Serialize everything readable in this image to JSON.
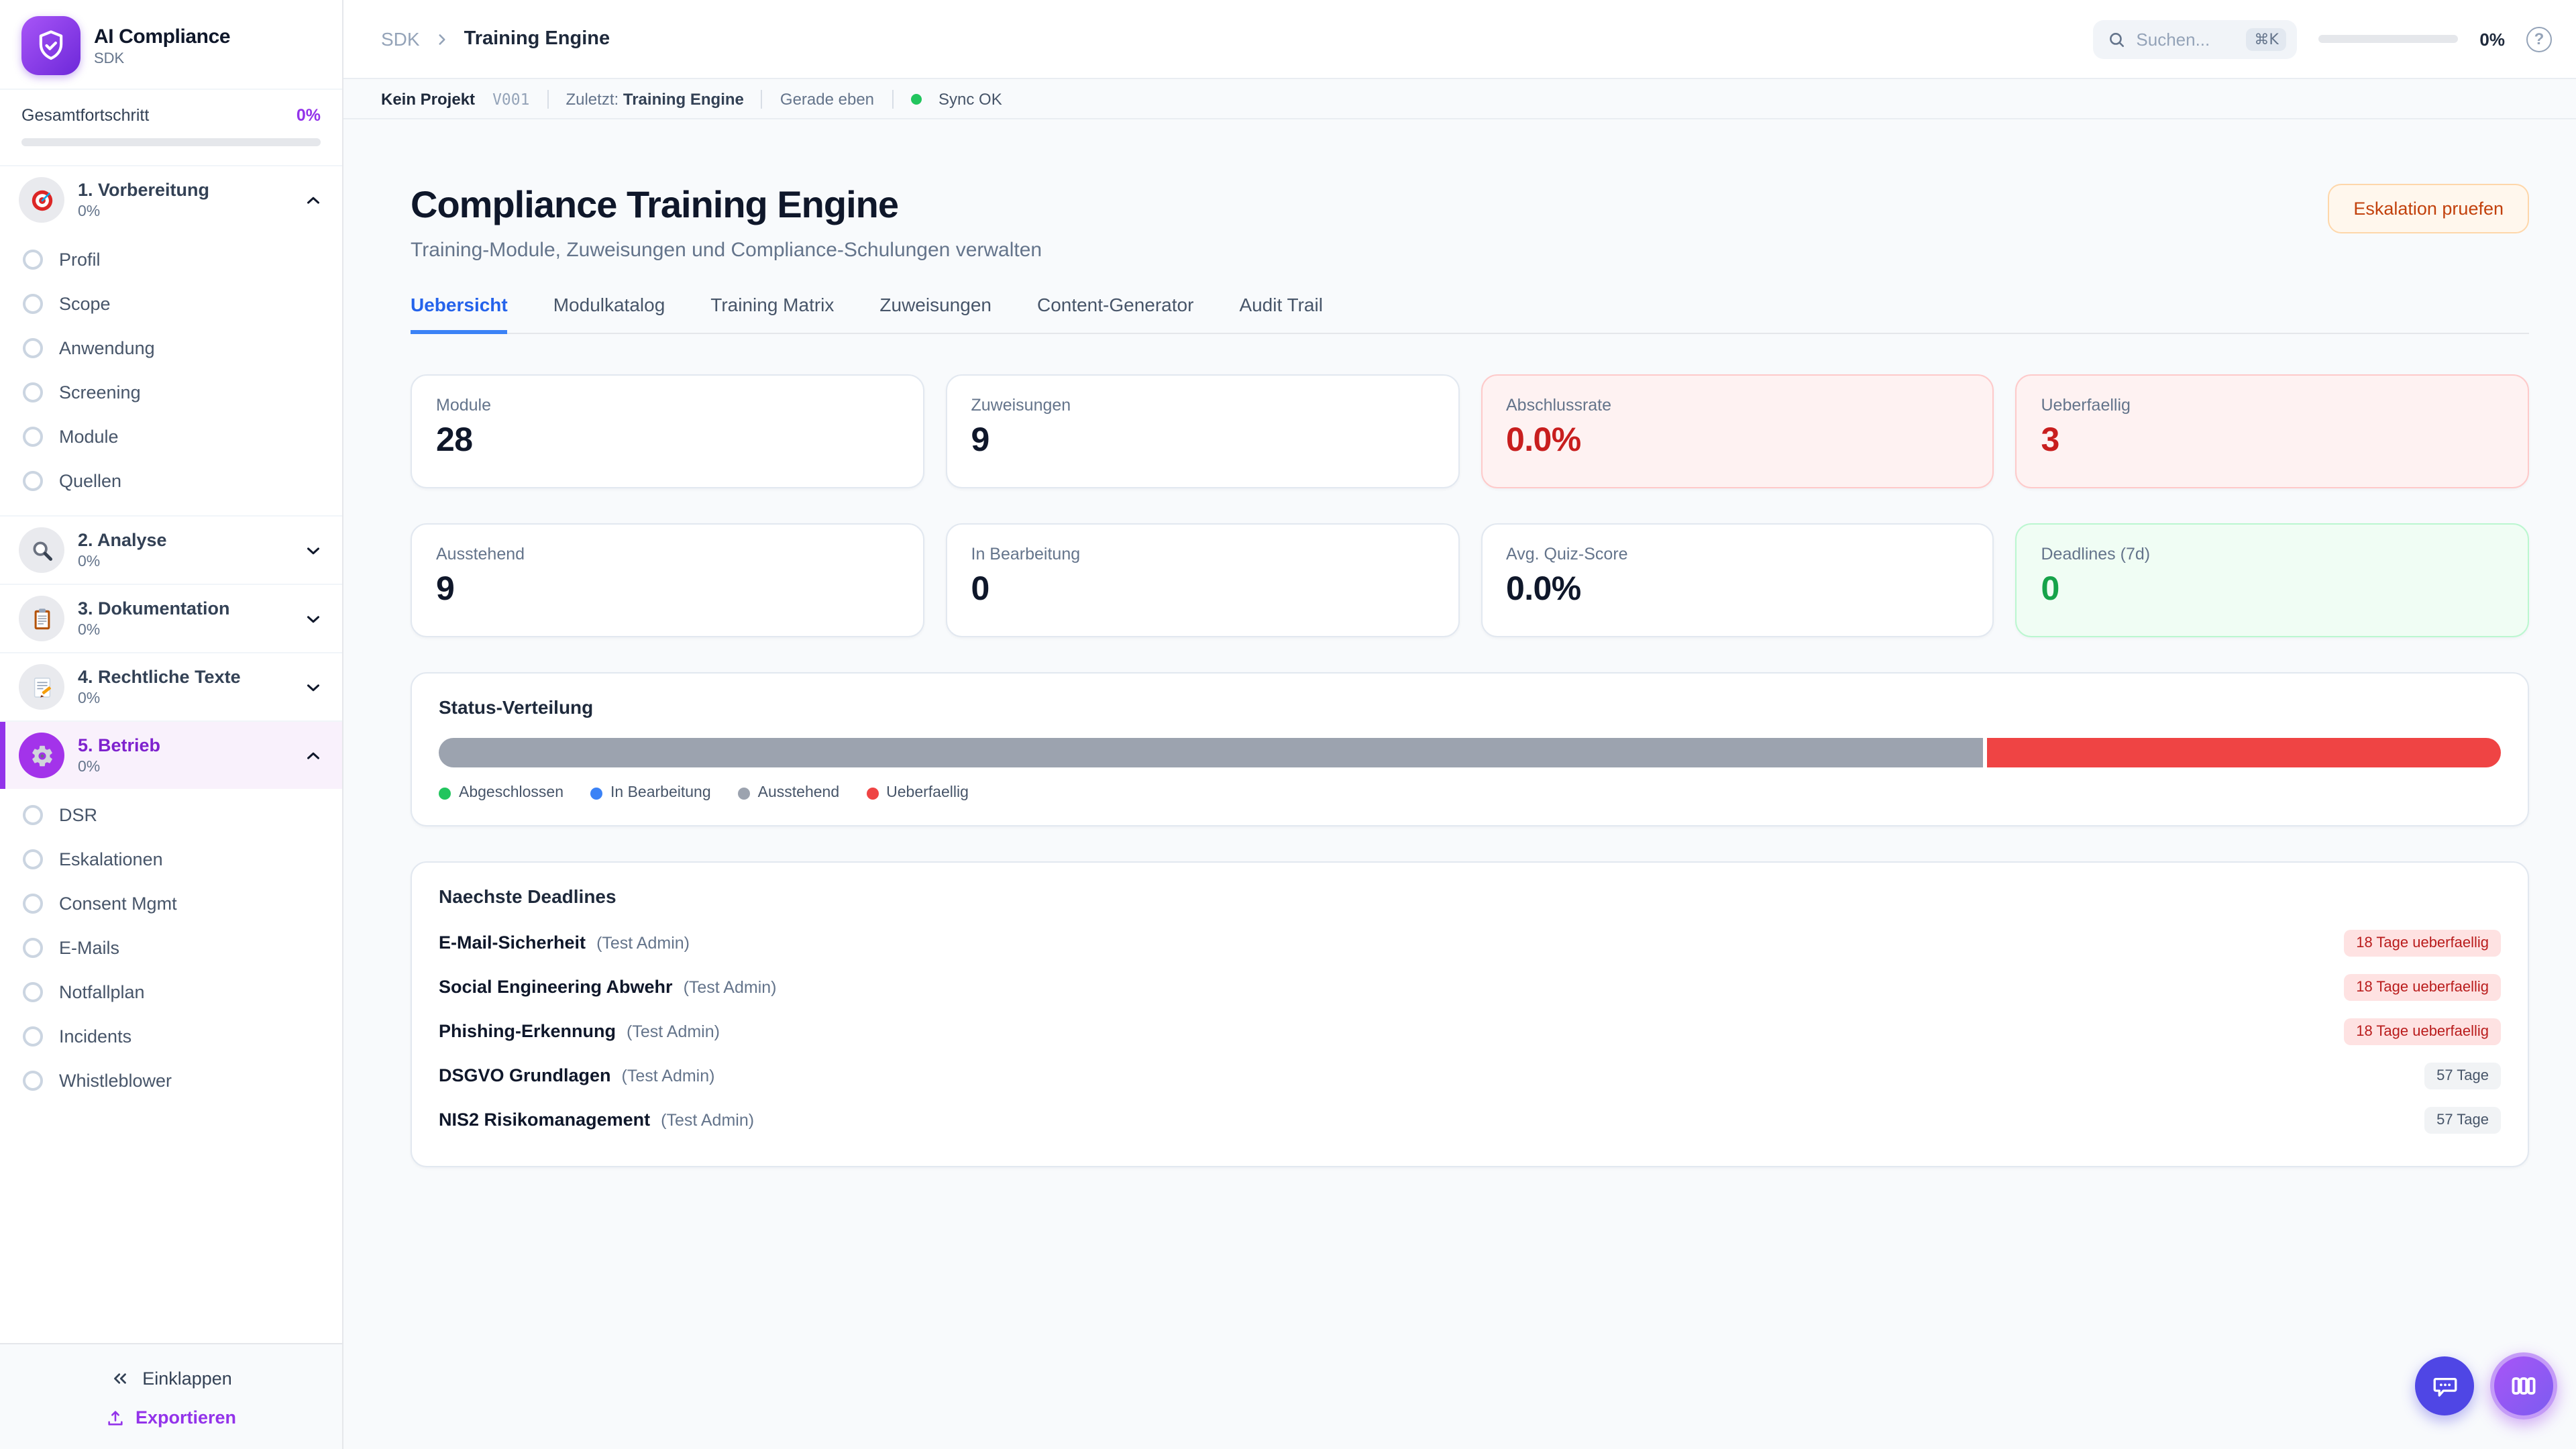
{
  "app": {
    "name": "AI Compliance",
    "subtitle": "SDK"
  },
  "colors": {
    "accent": "#9333EA",
    "tab_active": "#2563EB",
    "danger": "#DC2626",
    "success": "#16A34A",
    "warning_action": "#C2410C",
    "sync_ok": "#22C55E"
  },
  "sidebar": {
    "progress_label": "Gesamtfortschritt",
    "progress_value": "0%",
    "sections": [
      {
        "icon": "target-icon",
        "label": "1. Vorbereitung",
        "percent": "0%",
        "expanded": true,
        "items": [
          "Profil",
          "Scope",
          "Anwendung",
          "Screening",
          "Module",
          "Quellen"
        ]
      },
      {
        "icon": "magnifier-icon",
        "label": "2. Analyse",
        "percent": "0%",
        "expanded": false
      },
      {
        "icon": "clipboard-icon",
        "label": "3. Dokumentation",
        "percent": "0%",
        "expanded": false
      },
      {
        "icon": "memo-icon",
        "label": "4. Rechtliche Texte",
        "percent": "0%",
        "expanded": false
      },
      {
        "icon": "gear-icon",
        "label": "5. Betrieb",
        "percent": "0%",
        "expanded": true,
        "active": true,
        "items": [
          "DSR",
          "Eskalationen",
          "Consent Mgmt",
          "E-Mails",
          "Notfallplan",
          "Incidents",
          "Whistleblower"
        ]
      }
    ],
    "collapse_label": "Einklappen",
    "export_label": "Exportieren"
  },
  "header": {
    "breadcrumb": {
      "root": "SDK",
      "current": "Training Engine"
    },
    "search_placeholder": "Suchen...",
    "search_kbd": "⌘K",
    "progress_value": "0%",
    "help_glyph": "?"
  },
  "statusbar": {
    "project": "Kein Projekt",
    "version": "V001",
    "last_label": "Zuletzt:",
    "last_value": "Training Engine",
    "time": "Gerade eben",
    "sync": "Sync OK",
    "sync_color": "#22C55E"
  },
  "page": {
    "title": "Compliance Training Engine",
    "subtitle": "Training-Module, Zuweisungen und Compliance-Schulungen verwalten",
    "action_label": "Eskalation pruefen"
  },
  "tabs": [
    {
      "label": "Uebersicht",
      "active": true
    },
    {
      "label": "Modulkatalog",
      "active": false
    },
    {
      "label": "Training Matrix",
      "active": false
    },
    {
      "label": "Zuweisungen",
      "active": false
    },
    {
      "label": "Content-Generator",
      "active": false
    },
    {
      "label": "Audit Trail",
      "active": false
    }
  ],
  "stats": [
    {
      "label": "Module",
      "value": "28",
      "variant": "default"
    },
    {
      "label": "Zuweisungen",
      "value": "9",
      "variant": "default"
    },
    {
      "label": "Abschlussrate",
      "value": "0.0%",
      "variant": "danger"
    },
    {
      "label": "Ueberfaellig",
      "value": "3",
      "variant": "danger"
    },
    {
      "label": "Ausstehend",
      "value": "9",
      "variant": "default"
    },
    {
      "label": "In Bearbeitung",
      "value": "0",
      "variant": "default"
    },
    {
      "label": "Avg. Quiz-Score",
      "value": "0.0%",
      "variant": "default"
    },
    {
      "label": "Deadlines (7d)",
      "value": "0",
      "variant": "success"
    }
  ],
  "distribution": {
    "title": "Status-Verteilung",
    "segments": [
      {
        "label": "Ausstehend",
        "percent": 75,
        "color": "#9CA3AF"
      },
      {
        "label": "Ueberfaellig",
        "percent": 25,
        "color": "#EF4444"
      }
    ],
    "legend": [
      {
        "label": "Abgeschlossen",
        "color": "#22C55E"
      },
      {
        "label": "In Bearbeitung",
        "color": "#3B82F6"
      },
      {
        "label": "Ausstehend",
        "color": "#9CA3AF"
      },
      {
        "label": "Ueberfaellig",
        "color": "#EF4444"
      }
    ]
  },
  "deadlines": {
    "title": "Naechste Deadlines",
    "items": [
      {
        "name": "E-Mail-Sicherheit",
        "assignee": "(Test Admin)",
        "badge": "18 Tage ueberfaellig",
        "overdue": true
      },
      {
        "name": "Social Engineering Abwehr",
        "assignee": "(Test Admin)",
        "badge": "18 Tage ueberfaellig",
        "overdue": true
      },
      {
        "name": "Phishing-Erkennung",
        "assignee": "(Test Admin)",
        "badge": "18 Tage ueberfaellig",
        "overdue": true
      },
      {
        "name": "DSGVO Grundlagen",
        "assignee": "(Test Admin)",
        "badge": "57 Tage",
        "overdue": false
      },
      {
        "name": "NIS2 Risikomanagement",
        "assignee": "(Test Admin)",
        "badge": "57 Tage",
        "overdue": false
      }
    ]
  }
}
